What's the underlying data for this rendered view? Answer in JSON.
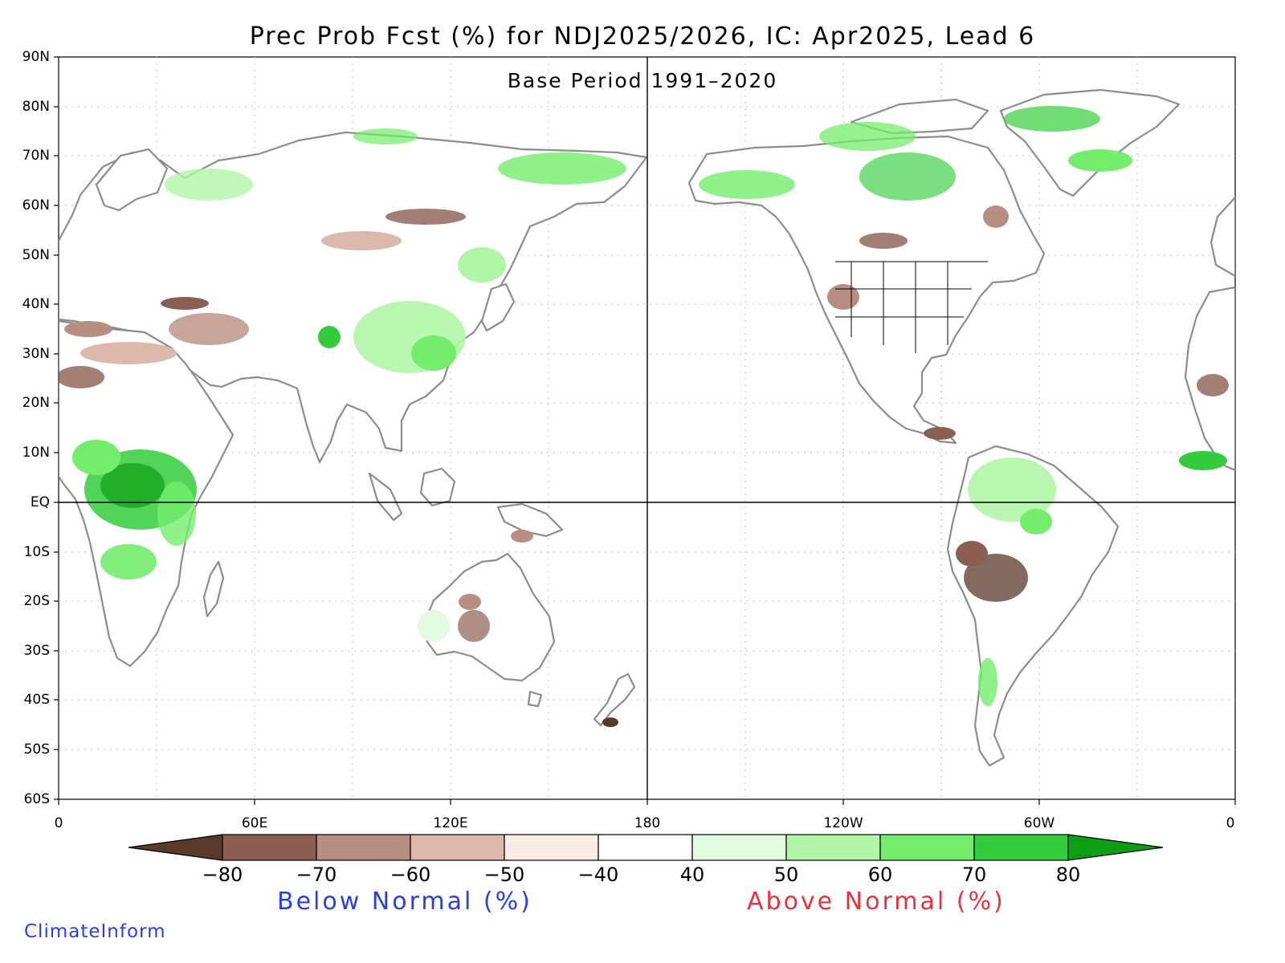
{
  "title": "Prec Prob Fcst (%) for NDJ2025/2026, IC: Apr2025, Lead 6",
  "subtitle": "Base Period 1991–2020",
  "lat_labels": [
    "90N",
    "80N",
    "70N",
    "60N",
    "50N",
    "40N",
    "30N",
    "20N",
    "10N",
    "EQ",
    "10S",
    "20S",
    "30S",
    "40S",
    "50S",
    "60S"
  ],
  "lon_labels": [
    "0",
    "60E",
    "120E",
    "180",
    "120W",
    "60W",
    "0"
  ],
  "colorbar": {
    "labels": [
      "−80",
      "−70",
      "−60",
      "−50",
      "−40",
      "40",
      "50",
      "60",
      "70",
      "80"
    ],
    "colors": [
      "#5b3a2c",
      "#8b5e52",
      "#b88e82",
      "#ddb9ad",
      "#f8ece4",
      "#ffffff",
      "#e2fbe0",
      "#b1f5a6",
      "#74ec6c",
      "#34cc3c",
      "#0e9e14"
    ],
    "below_label": "Below Normal (%)",
    "above_label": "Above Normal (%)"
  },
  "colors": {
    "below_label": "#2a3fe0",
    "above_label": "#e8333c",
    "credit": "#2a3fe0",
    "coastline": "#8c8c8c",
    "grid": "#bdbdbd"
  },
  "credit": "ClimateInform"
}
